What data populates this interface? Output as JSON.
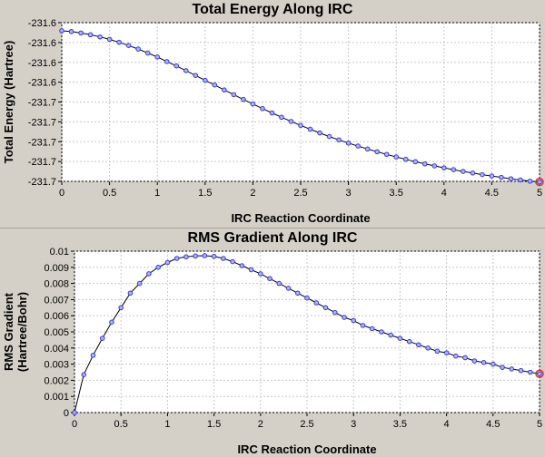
{
  "chart_data": [
    {
      "type": "line",
      "title": "Total Energy Along IRC",
      "xlabel": "IRC Reaction Coordinate",
      "ylabel": "Total Energy (Hartree)",
      "xlim": [
        0,
        5
      ],
      "ylim": [
        -231.69,
        -231.61
      ],
      "xticks": [
        0,
        0.5,
        1,
        1.5,
        2,
        2.5,
        3,
        3.5,
        4,
        4.5,
        5
      ],
      "xtick_labels": [
        "0",
        "0.5",
        "1",
        "1.5",
        "2",
        "2.5",
        "3",
        "3.5",
        "4",
        "4.5",
        "5"
      ],
      "yticks": [
        -231.61,
        -231.62,
        -231.63,
        -231.64,
        -231.65,
        -231.66,
        -231.67,
        -231.68,
        -231.69
      ],
      "ytick_labels": [
        "-231.6",
        "-231.6",
        "-231.6",
        "-231.6",
        "-231.7",
        "-231.7",
        "-231.7",
        "-231.7",
        "-231.7"
      ],
      "grid": true,
      "line_color": "#000000",
      "marker_color": "#3a3ad8",
      "endpoint_color": "#e03030",
      "x": [
        0,
        0.1,
        0.2,
        0.3,
        0.4,
        0.5,
        0.6,
        0.7,
        0.8,
        0.9,
        1.0,
        1.1,
        1.2,
        1.3,
        1.4,
        1.5,
        1.6,
        1.7,
        1.8,
        1.9,
        2.0,
        2.1,
        2.2,
        2.3,
        2.4,
        2.5,
        2.6,
        2.7,
        2.8,
        2.9,
        3.0,
        3.1,
        3.2,
        3.3,
        3.4,
        3.5,
        3.6,
        3.7,
        3.8,
        3.9,
        4.0,
        4.1,
        4.2,
        4.3,
        4.4,
        4.5,
        4.6,
        4.7,
        4.8,
        4.9,
        5.0
      ],
      "y": [
        -231.6141,
        -231.6145,
        -231.6152,
        -231.6161,
        -231.6172,
        -231.6184,
        -231.6199,
        -231.6215,
        -231.6233,
        -231.6253,
        -231.6273,
        -231.6296,
        -231.6318,
        -231.6342,
        -231.6366,
        -231.6391,
        -231.6414,
        -231.6439,
        -231.6463,
        -231.6487,
        -231.651,
        -231.6533,
        -231.6555,
        -231.6577,
        -231.6598,
        -231.6618,
        -231.6637,
        -231.6656,
        -231.6674,
        -231.6691,
        -231.6707,
        -231.6722,
        -231.6737,
        -231.6751,
        -231.6764,
        -231.6777,
        -231.6789,
        -231.6801,
        -231.6812,
        -231.6822,
        -231.6832,
        -231.6841,
        -231.685,
        -231.6858,
        -231.6866,
        -231.6873,
        -231.688,
        -231.6887,
        -231.6893,
        -231.6899,
        -231.6903
      ]
    },
    {
      "type": "line",
      "title": "RMS Gradient Along IRC",
      "xlabel": "IRC Reaction Coordinate",
      "ylabel": "RMS Gradient (Hartree/Bohr)",
      "xlim": [
        0,
        5
      ],
      "ylim": [
        0,
        0.01
      ],
      "xticks": [
        0,
        0.5,
        1,
        1.5,
        2,
        2.5,
        3,
        3.5,
        4,
        4.5,
        5
      ],
      "xtick_labels": [
        "0",
        "0.5",
        "1",
        "1.5",
        "2",
        "2.5",
        "3",
        "3.5",
        "4",
        "4.5",
        "5"
      ],
      "yticks": [
        0,
        0.001,
        0.002,
        0.003,
        0.004,
        0.005,
        0.006,
        0.007,
        0.008,
        0.009,
        0.01
      ],
      "ytick_labels": [
        "0",
        "0.001",
        "0.002",
        "0.003",
        "0.004",
        "0.005",
        "0.006",
        "0.007",
        "0.008",
        "0.009",
        "0.01"
      ],
      "grid": true,
      "line_color": "#000000",
      "marker_color": "#3a3ad8",
      "endpoint_color": "#e03030",
      "x": [
        0,
        0.1,
        0.2,
        0.3,
        0.4,
        0.5,
        0.6,
        0.7,
        0.8,
        0.9,
        1.0,
        1.1,
        1.2,
        1.3,
        1.4,
        1.5,
        1.6,
        1.7,
        1.8,
        1.9,
        2.0,
        2.1,
        2.2,
        2.3,
        2.4,
        2.5,
        2.6,
        2.7,
        2.8,
        2.9,
        3.0,
        3.1,
        3.2,
        3.3,
        3.4,
        3.5,
        3.6,
        3.7,
        3.8,
        3.9,
        4.0,
        4.1,
        4.2,
        4.3,
        4.4,
        4.5,
        4.6,
        4.7,
        4.8,
        4.9,
        5.0
      ],
      "y": [
        0.0,
        0.00235,
        0.00355,
        0.0046,
        0.0056,
        0.0065,
        0.0074,
        0.008,
        0.0086,
        0.009,
        0.0093,
        0.00955,
        0.00965,
        0.0097,
        0.00972,
        0.00968,
        0.00955,
        0.00935,
        0.0091,
        0.00885,
        0.0086,
        0.0083,
        0.008,
        0.0077,
        0.0074,
        0.0071,
        0.0068,
        0.0065,
        0.0062,
        0.0059,
        0.0057,
        0.0054,
        0.0052,
        0.005,
        0.0048,
        0.0046,
        0.0044,
        0.0042,
        0.004,
        0.0038,
        0.0037,
        0.0035,
        0.0034,
        0.0032,
        0.0031,
        0.003,
        0.0028,
        0.0027,
        0.0026,
        0.0025,
        0.0024
      ]
    }
  ]
}
